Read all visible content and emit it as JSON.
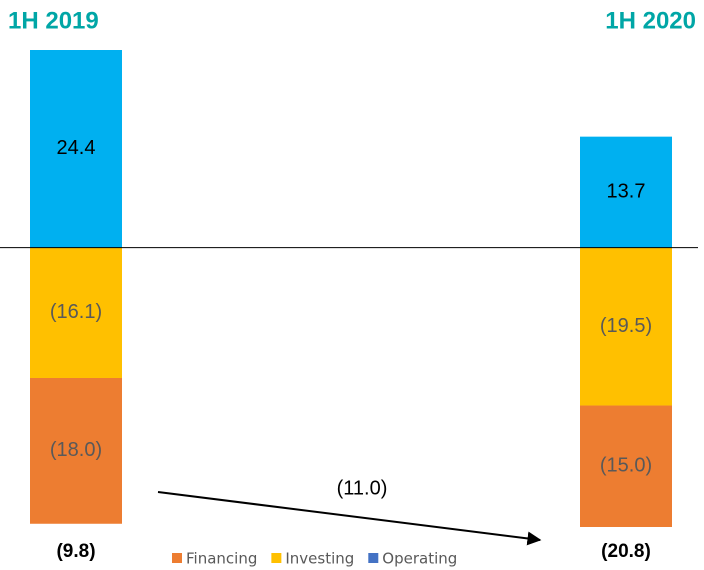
{
  "chart_data": {
    "type": "stacked_bar",
    "categories": [
      "1H 2019",
      "1H 2020"
    ],
    "series": [
      {
        "name": "Operating",
        "color": "#00b0f0",
        "legend_color": "#4472c4",
        "values": [
          24.4,
          13.7
        ],
        "value_labels": [
          "24.4",
          "13.7"
        ]
      },
      {
        "name": "Investing",
        "color": "#ffc000",
        "legend_color": "#ffc000",
        "values": [
          -16.1,
          -19.5
        ],
        "value_labels": [
          "(16.1)",
          "(19.5)"
        ]
      },
      {
        "name": "Financing",
        "color": "#ed7d31",
        "legend_color": "#ed7d31",
        "values": [
          -18.0,
          -15.0
        ],
        "value_labels": [
          "(18.0)",
          "(15.0)"
        ]
      }
    ],
    "totals": [
      -9.8,
      -20.8
    ],
    "total_labels": [
      "(9.8)",
      "(20.8)"
    ],
    "change": {
      "value": -11.0,
      "label": "(11.0)"
    },
    "category_color": "#00a6a6"
  }
}
